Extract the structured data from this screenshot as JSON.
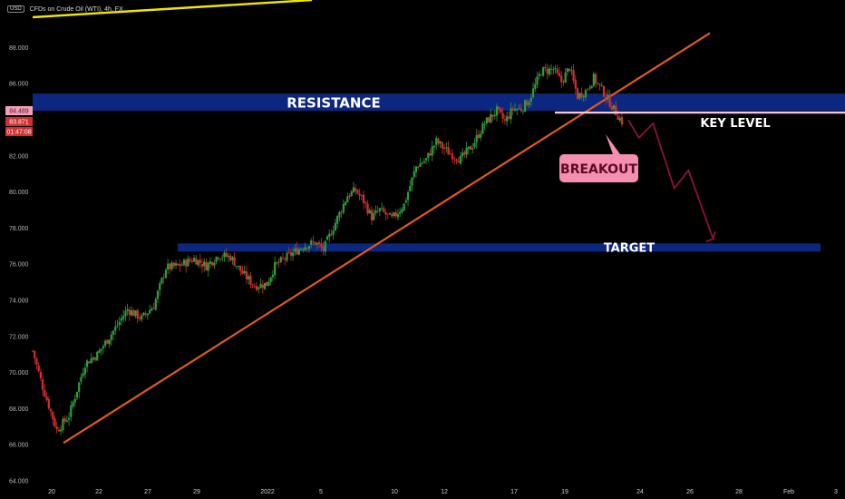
{
  "header": {
    "currency": "USD",
    "symbol_title": "CFDs on Crude Oil (WTI), 4h, FX"
  },
  "chart_data": {
    "type": "candlestick",
    "y_ticks": [
      "64.000",
      "66.000",
      "68.000",
      "70.000",
      "72.000",
      "74.000",
      "76.000",
      "78.000",
      "80.000",
      "82.000",
      "84.000",
      "86.000",
      "88.000"
    ],
    "ylim": [
      64,
      89.1
    ],
    "x_ticks": [
      "20",
      "22",
      "27",
      "29",
      "2022",
      "5",
      "10",
      "12",
      "17",
      "19",
      "24",
      "26",
      "28",
      "Feb",
      "3"
    ],
    "price_badges": [
      {
        "value": "84.489",
        "color": "#f2a0b8",
        "text_color": "#5a0b22"
      },
      {
        "value": "83.871",
        "color": "#d32f2f",
        "text_color": "#ffffff"
      },
      {
        "value": "01:47:08",
        "color": "#d32f2f",
        "text_color": "#ffffff"
      }
    ],
    "zones": [
      {
        "label": "RESISTANCE",
        "y_low": 84.5,
        "y_high": 85.45,
        "color": "#0d2a8a"
      },
      {
        "label": "TARGET",
        "y_low": 76.7,
        "y_high": 77.15,
        "color": "#0d2a8a"
      }
    ],
    "key_level": {
      "label": "KEY LEVEL",
      "value": 84.5,
      "color": "#f8c8d8"
    },
    "breakout": {
      "label": "BREAKOUT",
      "color": "#f48fb1"
    },
    "trendline": {
      "from": [
        66.1
      ],
      "to": [
        88.8
      ],
      "color": "#e05a1c"
    },
    "down_color": "#d32f2f",
    "up_color": "#2e9e3a",
    "anchors": [
      [
        0,
        71.2
      ],
      [
        5,
        69.2
      ],
      [
        12,
        66.8
      ],
      [
        18,
        67.6
      ],
      [
        26,
        70.5
      ],
      [
        32,
        71.0
      ],
      [
        40,
        72.3
      ],
      [
        47,
        73.5
      ],
      [
        54,
        73.0
      ],
      [
        60,
        73.7
      ],
      [
        66,
        75.8
      ],
      [
        72,
        75.9
      ],
      [
        80,
        76.3
      ],
      [
        86,
        75.9
      ],
      [
        92,
        76.5
      ],
      [
        98,
        76.4
      ],
      [
        104,
        75.5
      ],
      [
        110,
        74.8
      ],
      [
        116,
        74.9
      ],
      [
        120,
        75.9
      ],
      [
        126,
        76.4
      ],
      [
        134,
        77.0
      ],
      [
        140,
        77.2
      ],
      [
        144,
        76.8
      ],
      [
        150,
        78.3
      ],
      [
        156,
        79.8
      ],
      [
        160,
        80.1
      ],
      [
        164,
        79.5
      ],
      [
        168,
        78.6
      ],
      [
        172,
        79.0
      ],
      [
        178,
        78.5
      ],
      [
        184,
        79.3
      ],
      [
        190,
        81.4
      ],
      [
        195,
        81.8
      ],
      [
        200,
        82.8
      ],
      [
        206,
        82.2
      ],
      [
        212,
        81.8
      ],
      [
        218,
        82.6
      ],
      [
        224,
        83.8
      ],
      [
        230,
        84.5
      ],
      [
        234,
        83.9
      ],
      [
        238,
        84.6
      ],
      [
        242,
        84.6
      ],
      [
        246,
        85.1
      ],
      [
        252,
        86.7
      ],
      [
        258,
        86.8
      ],
      [
        262,
        86.1
      ],
      [
        266,
        86.9
      ],
      [
        270,
        85.3
      ],
      [
        274,
        85.6
      ],
      [
        278,
        86.3
      ],
      [
        283,
        85.5
      ],
      [
        289,
        84.4
      ],
      [
        292,
        83.9
      ]
    ],
    "projection": [
      [
        0,
        84.0
      ],
      [
        6,
        83.0
      ],
      [
        14,
        83.8
      ],
      [
        26,
        80.2
      ],
      [
        34,
        81.2
      ],
      [
        48,
        77.4
      ]
    ],
    "top_line": {
      "color": "#f2e600"
    }
  }
}
